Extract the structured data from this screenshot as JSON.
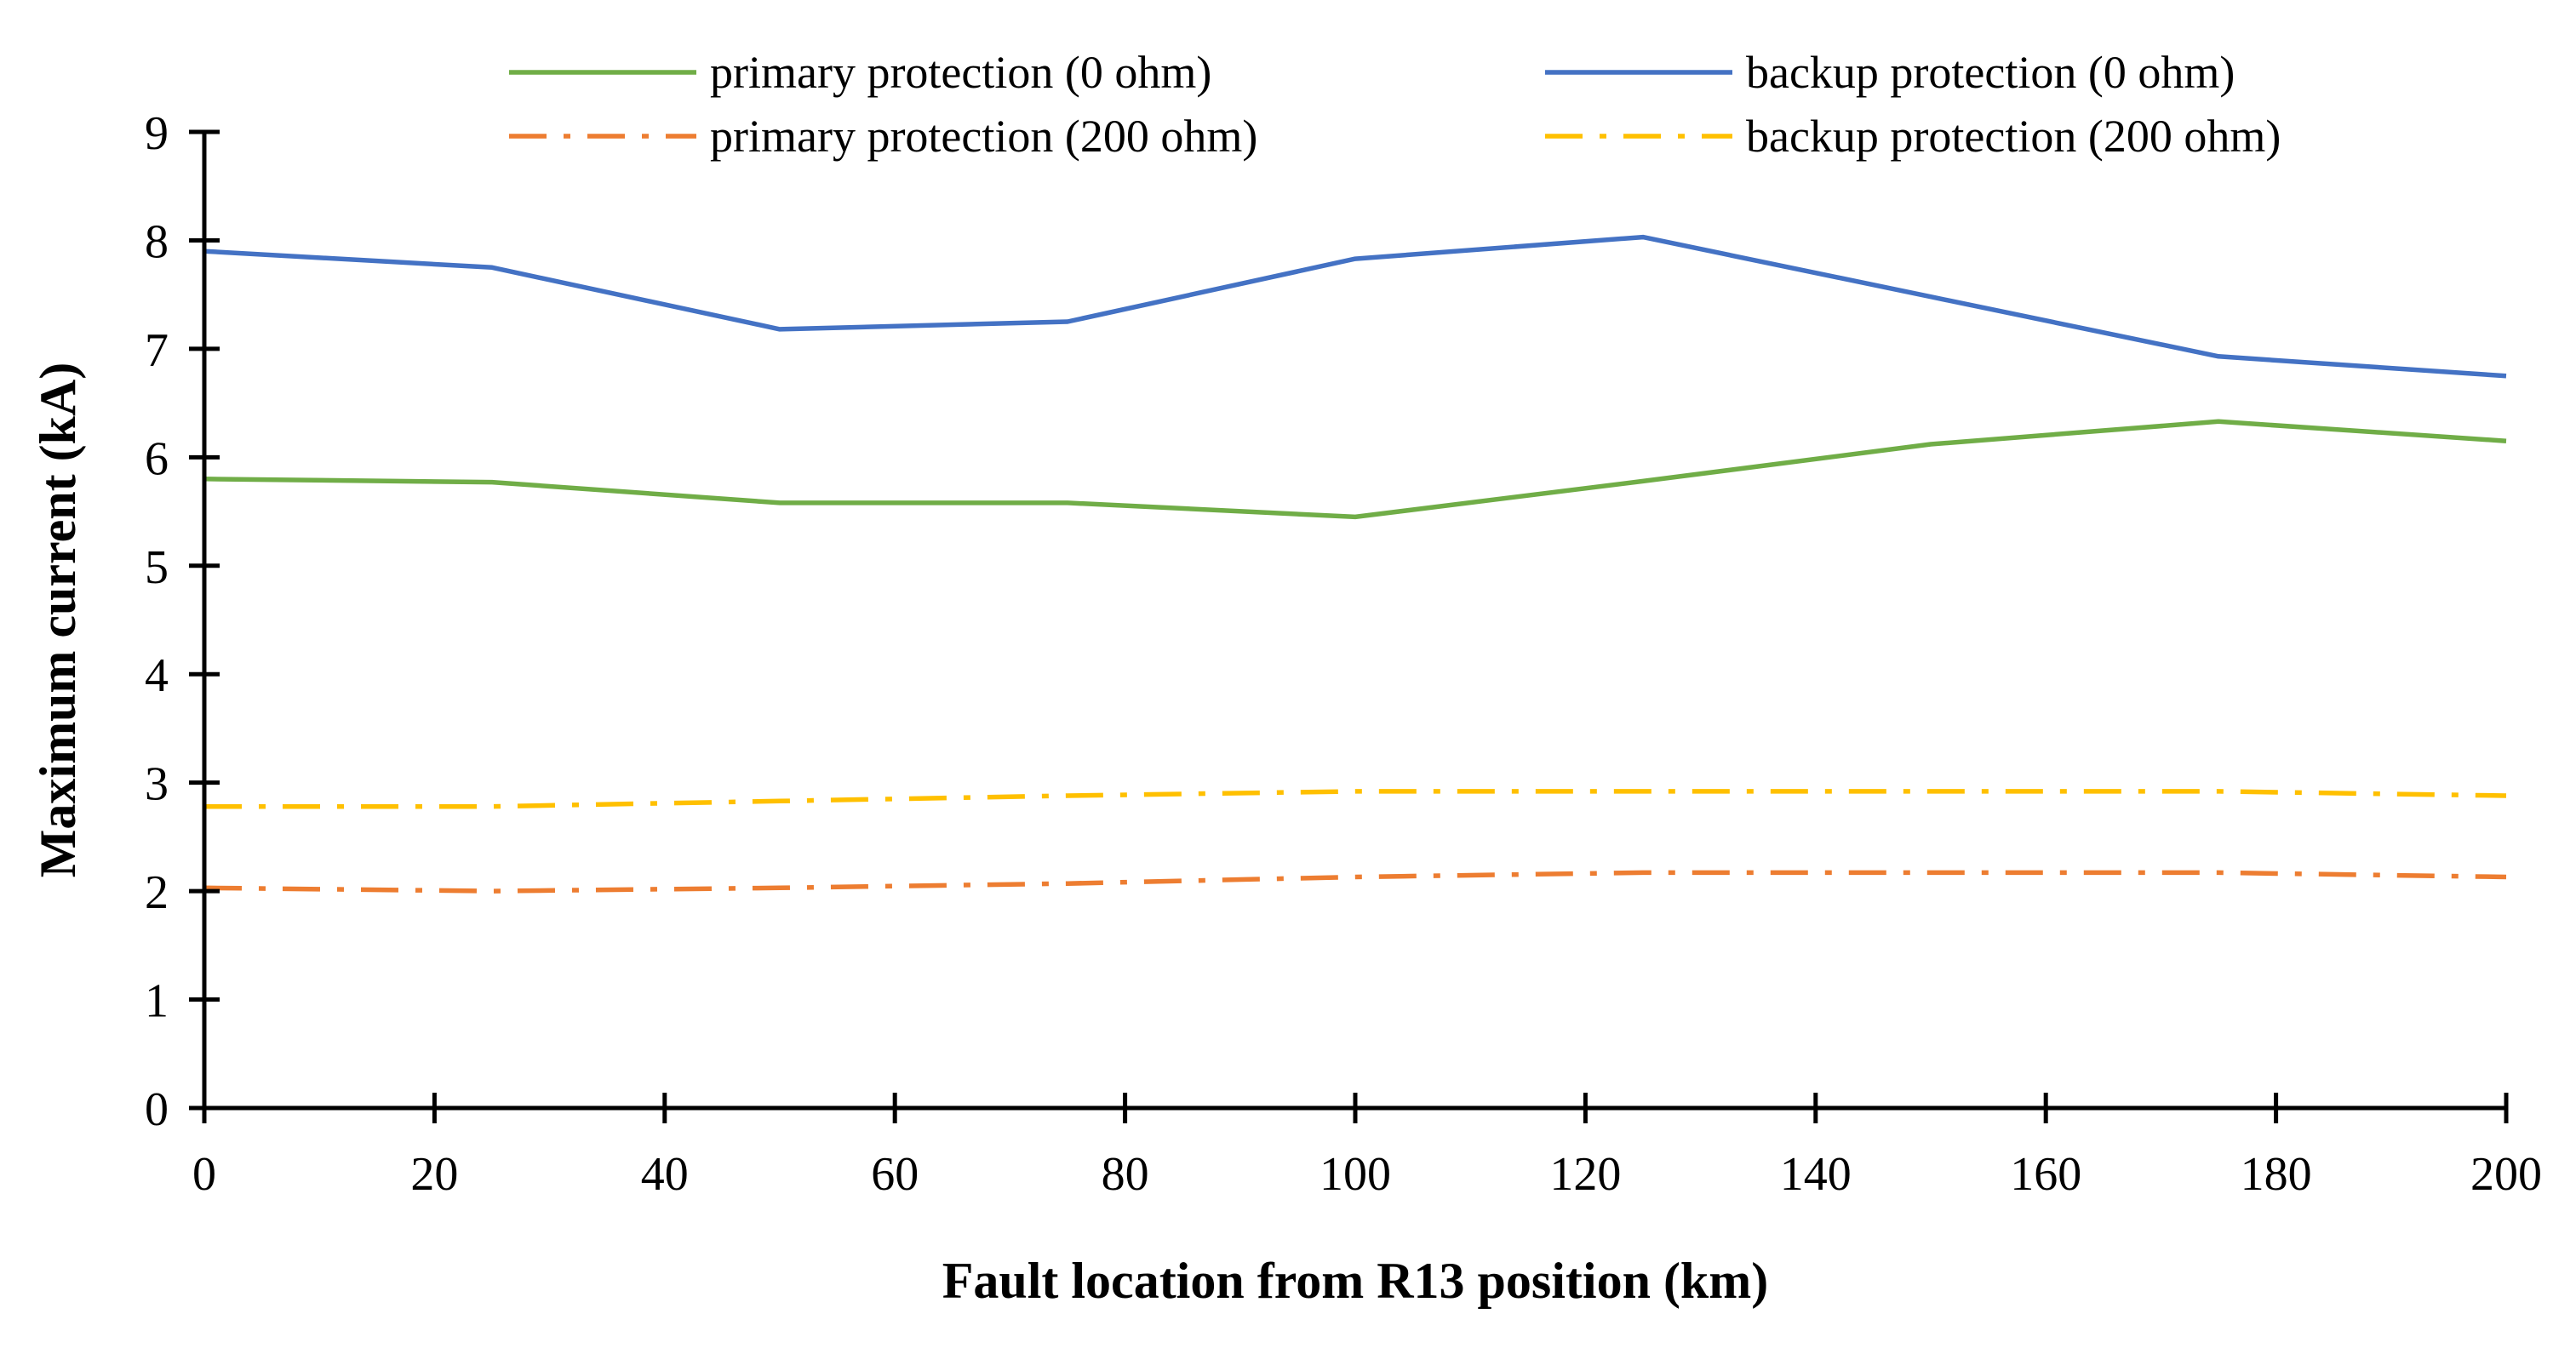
{
  "chart_data": {
    "type": "line",
    "xlabel": "Fault location from R13 position (km)",
    "ylabel": "Maximum current (kA)",
    "xlim": [
      0,
      200
    ],
    "ylim": [
      0,
      9
    ],
    "x_ticks": [
      0,
      20,
      40,
      60,
      80,
      100,
      120,
      140,
      160,
      180,
      200
    ],
    "y_ticks": [
      0,
      1,
      2,
      3,
      4,
      5,
      6,
      7,
      8,
      9
    ],
    "grid": false,
    "legend_position": "top",
    "x": [
      0,
      25,
      50,
      75,
      100,
      125,
      150,
      175,
      200
    ],
    "series": [
      {
        "name": "primary protection (0 ohm)",
        "color": "#70ad47",
        "style": "solid",
        "values": [
          5.8,
          5.77,
          5.58,
          5.58,
          5.45,
          5.78,
          6.12,
          6.33,
          6.15
        ]
      },
      {
        "name": "backup protection (0 ohm)",
        "color": "#4472c4",
        "style": "solid",
        "values": [
          7.9,
          7.75,
          7.18,
          7.25,
          7.83,
          8.03,
          7.48,
          6.93,
          6.75
        ]
      },
      {
        "name": "primary protection (200 ohm)",
        "color": "#ed7d31",
        "style": "dash-dot",
        "values": [
          2.03,
          2.0,
          2.03,
          2.07,
          2.13,
          2.17,
          2.17,
          2.17,
          2.13
        ]
      },
      {
        "name": "backup protection (200 ohm)",
        "color": "#ffc000",
        "style": "dash-dot",
        "values": [
          2.78,
          2.78,
          2.83,
          2.88,
          2.92,
          2.92,
          2.92,
          2.92,
          2.88
        ]
      }
    ]
  }
}
